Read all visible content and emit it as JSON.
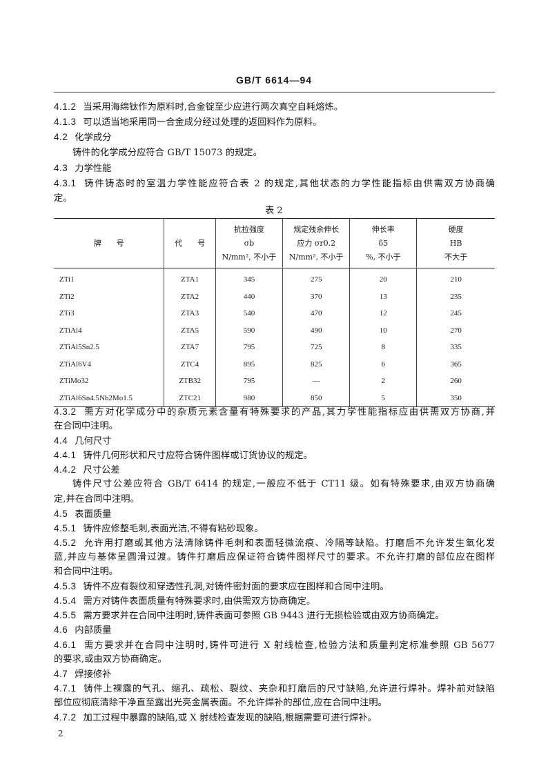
{
  "header": {
    "title": "GB/T 6614—94"
  },
  "upper": [
    {
      "num": "4.1.2",
      "lines": [
        "当采用海绵钛作为原料时,合金锭至少应进行两次真空自耗熔炼。"
      ]
    },
    {
      "num": "4.1.3",
      "lines": [
        "可以适当地采用同一合金成分经过处理的返回料作为原料。"
      ]
    },
    {
      "num": "4.2",
      "lines": [
        "化学成分"
      ]
    },
    {
      "num": "",
      "indent": true,
      "lines": [
        "铸件的化学成分应符合 GB/T 15073 的规定。"
      ]
    },
    {
      "num": "4.3",
      "lines": [
        "力学性能"
      ]
    },
    {
      "num": "4.3.1",
      "lines": [
        "铸件铸态时的室温力学性能应符合表 2 的规定,其他状态的力学性能指标由供需双方协商确",
        "定。"
      ]
    }
  ],
  "table": {
    "caption": "表 2",
    "headers": [
      [
        "牌　　号"
      ],
      [
        "代　　号"
      ],
      [
        "抗拉强度",
        "σb",
        "N/mm², 不小于"
      ],
      [
        "规定残余伸长",
        "应力 σr0.2",
        "N/mm², 不小于"
      ],
      [
        "伸长率",
        "δ5",
        "%, 不小于"
      ],
      [
        "硬度",
        "HB",
        "不大于"
      ]
    ],
    "rows": [
      [
        "ZTi1",
        "ZTA1",
        "345",
        "275",
        "20",
        "210"
      ],
      [
        "ZTi2",
        "ZTA2",
        "440",
        "370",
        "13",
        "235"
      ],
      [
        "ZTi3",
        "ZTA3",
        "540",
        "470",
        "12",
        "245"
      ],
      [
        "ZTiAl4",
        "ZTA5",
        "590",
        "490",
        "10",
        "270"
      ],
      [
        "ZTiAl5Sn2.5",
        "ZTA7",
        "795",
        "725",
        "8",
        "335"
      ],
      [
        "ZTiAl6V4",
        "ZTC4",
        "895",
        "825",
        "6",
        "365"
      ],
      [
        "ZTiMo32",
        "ZTB32",
        "795",
        "—",
        "2",
        "260"
      ],
      [
        "ZTiAl6Sn4.5Nb2Mo1.5",
        "ZTC21",
        "980",
        "850",
        "5",
        "350"
      ]
    ]
  },
  "lower": [
    {
      "num": "4.3.2",
      "lines": [
        "需方对化学成分中的杂质元素含量有特殊要求的产品,其力学性能指标应由供需双方协商,并",
        "在合同中注明。"
      ]
    },
    {
      "num": "4.4",
      "lines": [
        "几何尺寸"
      ]
    },
    {
      "num": "4.4.1",
      "lines": [
        "铸件几何形状和尺寸应符合铸件图样或订货协议的规定。"
      ]
    },
    {
      "num": "4.4.2",
      "lines": [
        "尺寸公差"
      ]
    },
    {
      "num": "",
      "indent": true,
      "lines": [
        "铸件尺寸公差应符合 GB/T 6414 的规定,一般应不低于 CT11 级。如有特殊要求,由双方协商确",
        "定,并在合同中注明。"
      ]
    },
    {
      "num": "4.5",
      "lines": [
        "表面质量"
      ]
    },
    {
      "num": "4.5.1",
      "lines": [
        "铸件应修整毛刺,表面光洁,不得有粘砂现象。"
      ]
    },
    {
      "num": "4.5.2",
      "lines": [
        "允许用打磨或其他方法清除铸件毛刺和表面轻微流痕、冷隔等缺陷。打磨后不允许发生氧化发",
        "蓝,并应与基体呈圆滑过渡。铸件打磨后应保证符合铸件图样尺寸的要求。不允许打磨的部位应在图样",
        "和合同中注明。"
      ]
    },
    {
      "num": "4.5.3",
      "lines": [
        "铸件不应有裂纹和穿透性孔洞,对铸件密封面的要求应在图样和合同中注明。"
      ]
    },
    {
      "num": "4.5.4",
      "lines": [
        "需方对铸件表面质量有特殊要求时,由供需双方协商确定。"
      ]
    },
    {
      "num": "4.5.5",
      "lines": [
        "需方要求并在合同中注明时,铸件表面可参照 GB 9443 进行无损检验或由双方协商确定。"
      ]
    },
    {
      "num": "4.6",
      "lines": [
        "内部质量"
      ]
    },
    {
      "num": "4.6.1",
      "lines": [
        "需方要求并在合同中注明时,铸件可进行 X 射线检查,检验方法和质量判定标准参照 GB 5677",
        "的要求,或由双方协商确定。"
      ]
    },
    {
      "num": "4.7",
      "lines": [
        "焊接修补"
      ]
    },
    {
      "num": "4.7.1",
      "lines": [
        "铸件上裸露的气孔、缩孔、疏松、裂纹、夹杂和打磨后的尺寸缺陷,允许进行焊补。焊补前对缺陷",
        "部位应彻底清除干净直至露出光亮金属表面。不允许焊补的部位,应在合同中注明。"
      ]
    },
    {
      "num": "4.7.2",
      "lines": [
        "加工过程中暴露的缺陷,或 X 射线检查发现的缺陷,根据需要可进行焊补。"
      ]
    }
  ],
  "footer": {
    "page_number": "2"
  }
}
